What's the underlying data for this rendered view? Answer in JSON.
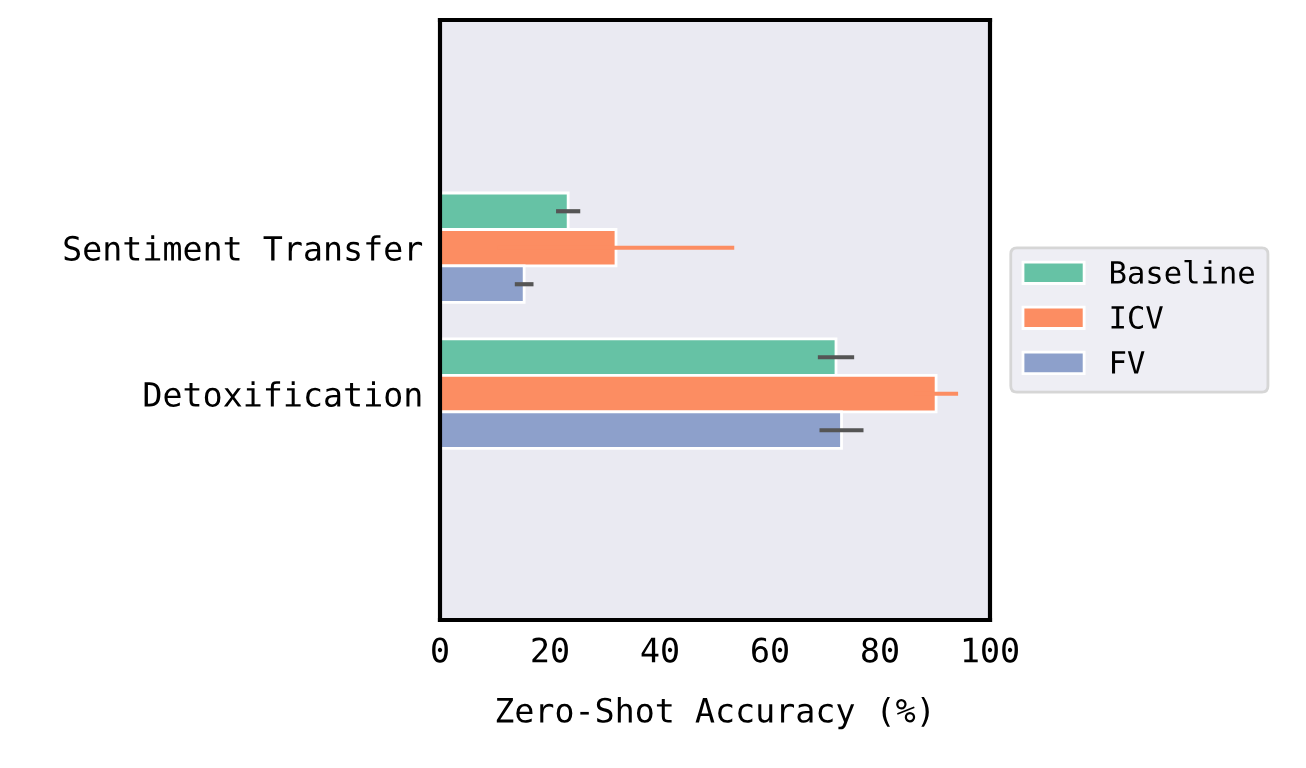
{
  "chart_data": {
    "type": "bar",
    "orientation": "horizontal",
    "xlabel": "Zero-Shot Accuracy (%)",
    "categories": [
      "Sentiment Transfer",
      "Detoxification"
    ],
    "series": [
      {
        "name": "Baseline",
        "color": "#66c2a5",
        "values": [
          23.3,
          72
        ],
        "errors": [
          2.2,
          3.3
        ]
      },
      {
        "name": "ICV",
        "color": "#fc8d62",
        "values": [
          32,
          90.2
        ],
        "errors": [
          21.5,
          4
        ]
      },
      {
        "name": "FV",
        "color": "#8da0cb",
        "values": [
          15.3,
          73
        ],
        "errors": [
          1.7,
          4
        ]
      }
    ],
    "xlim": [
      0,
      100
    ],
    "xticks": [
      0,
      20,
      40,
      60,
      80,
      100
    ],
    "grid": false,
    "legend": "right"
  }
}
